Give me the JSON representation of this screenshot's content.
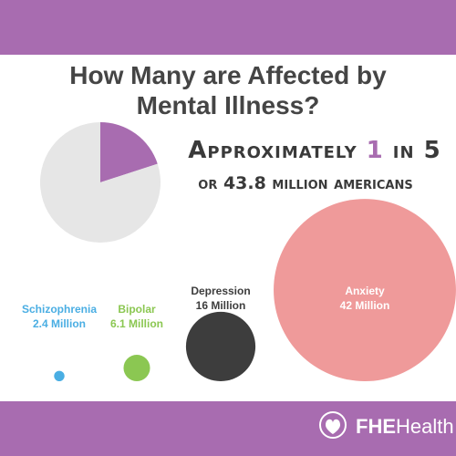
{
  "title": "How Many are Affected by Mental Illness?",
  "headline": {
    "before": "Approximately ",
    "highlight": "1",
    "after": " in 5",
    "second_line": "or 43.8 million americans"
  },
  "chart_data": [
    {
      "type": "pie",
      "values": [
        20,
        80
      ],
      "colors": [
        "#a86cb0",
        "#e6e6e6"
      ]
    },
    {
      "type": "bubble",
      "categories": [
        "Schizophrenia",
        "Bipolar",
        "Depression",
        "Anxiety"
      ],
      "values": [
        2.4,
        6.1,
        16,
        42
      ],
      "value_labels": [
        "2.4 Million",
        "6.1 Million",
        "16 Million",
        "42 Million"
      ],
      "colors": [
        "#4aaee3",
        "#8bc752",
        "#3d3d3d",
        "#ef9a9a"
      ],
      "label_colors": [
        "#4aaee3",
        "#8bc752",
        "#3d3d3d",
        "#ffffff"
      ]
    }
  ],
  "footer": {
    "brand_bold": "FHE",
    "brand_rest": "Health"
  }
}
